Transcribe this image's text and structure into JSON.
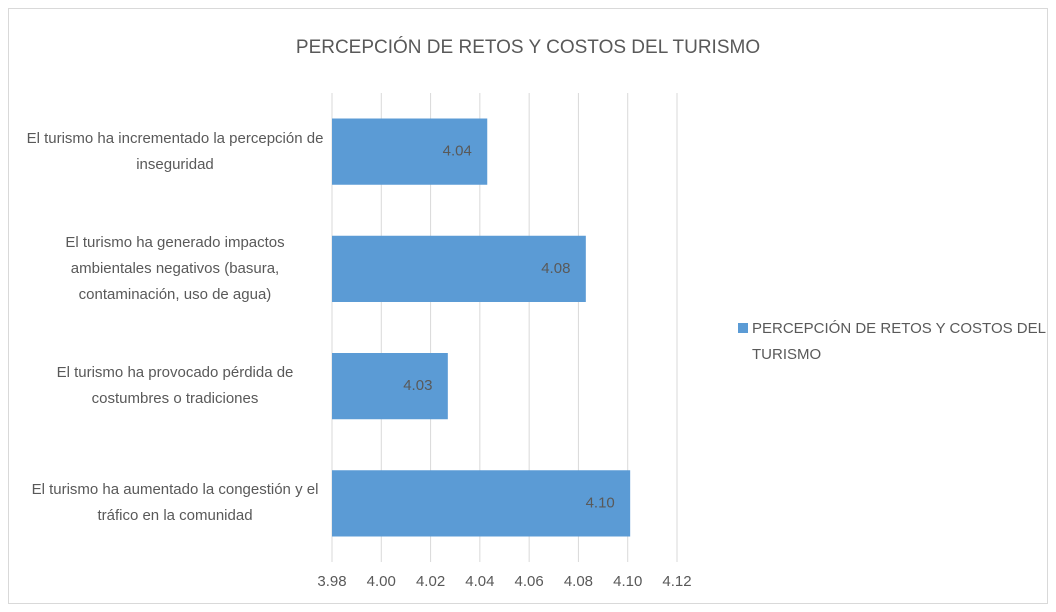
{
  "chart_data": {
    "type": "bar",
    "orientation": "horizontal",
    "title": "PERCEPCIÓN DE RETOS Y COSTOS DEL TURISMO",
    "categories": [
      "El turismo ha incrementado la percepción de inseguridad",
      "El turismo ha generado impactos ambientales negativos (basura, contaminación, uso de agua)",
      "El turismo ha provocado pérdida de costumbres o tradiciones",
      "El turismo ha aumentado la congestión y el tráfico en la comunidad"
    ],
    "series": [
      {
        "name": "PERCEPCIÓN DE RETOS Y COSTOS DEL TURISMO",
        "color": "#5b9bd5",
        "values": [
          4.043,
          4.083,
          4.027,
          4.101
        ],
        "value_labels": [
          "4.04",
          "4.08",
          "4.03",
          "4.10"
        ]
      }
    ],
    "xlim": [
      3.98,
      4.12
    ],
    "xticks": [
      3.98,
      {
        "value": 4,
        "label": "4.00"
      },
      4.02,
      4.04,
      4.06,
      4.08,
      {
        "value": 4.1,
        "label": "4.10"
      },
      4.12
    ],
    "grid": true,
    "legend": "right"
  }
}
